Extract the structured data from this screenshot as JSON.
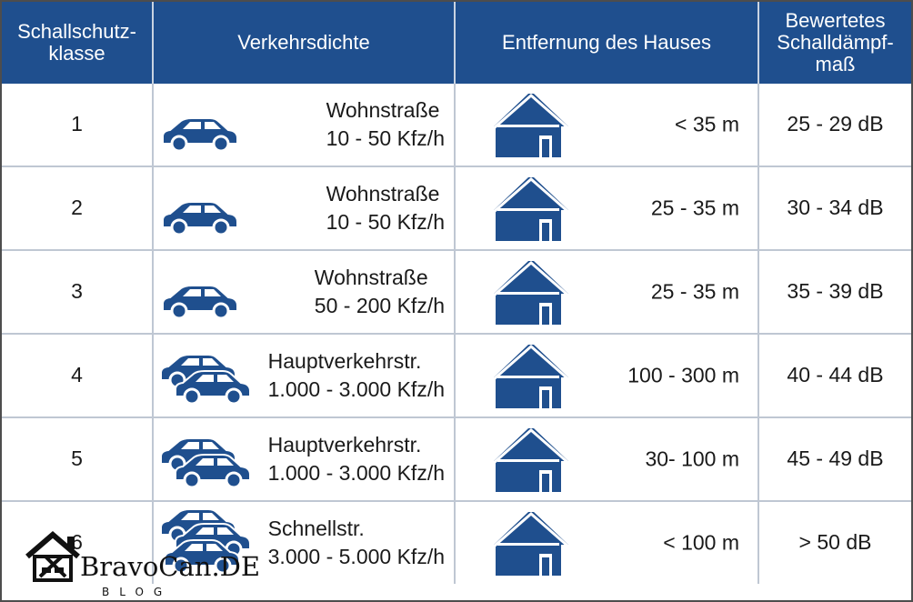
{
  "headers": [
    "Schallschutz-\nklasse",
    "Verkehrsdichte",
    "Entfernung des Hauses",
    "Bewertetes\nSchalldämpf-\nmaß"
  ],
  "rows": [
    {
      "klasse": "1",
      "strasse": "Wohnstraße",
      "dichte": "10 - 50 Kfz/h",
      "entfernung": "< 35 m",
      "daempfung": "25 - 29 dB",
      "cars": 1
    },
    {
      "klasse": "2",
      "strasse": "Wohnstraße",
      "dichte": "10 - 50 Kfz/h",
      "entfernung": "25 - 35 m",
      "daempfung": "30 - 34 dB",
      "cars": 1
    },
    {
      "klasse": "3",
      "strasse": "Wohnstraße",
      "dichte": "50 - 200 Kfz/h",
      "entfernung": "25 - 35 m",
      "daempfung": "35 - 39 dB",
      "cars": 1
    },
    {
      "klasse": "4",
      "strasse": "Hauptverkehrstr.",
      "dichte": "1.000 - 3.000 Kfz/h",
      "entfernung": "100 - 300 m",
      "daempfung": "40 - 44 dB",
      "cars": 2
    },
    {
      "klasse": "5",
      "strasse": "Hauptverkehrstr.",
      "dichte": "1.000 - 3.000 Kfz/h",
      "entfernung": "30- 100 m",
      "daempfung": "45 - 49 dB",
      "cars": 2
    },
    {
      "klasse": "6",
      "strasse": "Schnellstr.",
      "dichte": "3.000 - 5.000 Kfz/h",
      "entfernung": "< 100 m",
      "daempfung": "> 50 dB",
      "cars": 3
    }
  ],
  "logo": {
    "brand": "BravoCan.DE",
    "sub": "BLOG"
  },
  "colors": {
    "primary": "#1f4f8e",
    "grid": "#bfc7d3"
  },
  "icons": {
    "car": "car-icon",
    "house": "house-icon"
  }
}
